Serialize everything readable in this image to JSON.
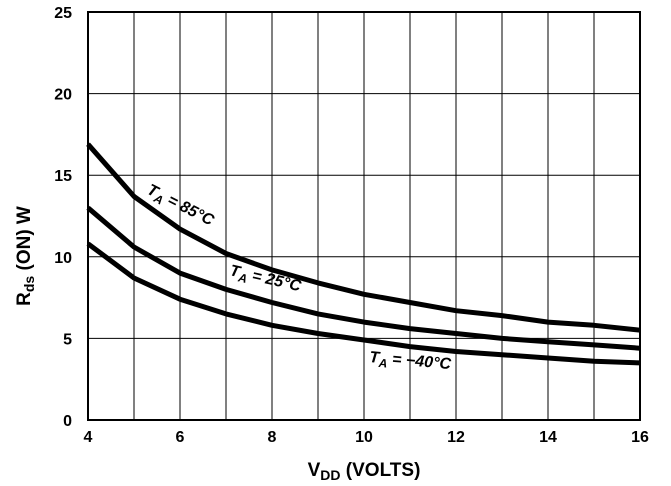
{
  "chart_data": {
    "type": "line",
    "xlabel": {
      "main": "V",
      "sub": "DD",
      "rest": " (VOLTS)"
    },
    "ylabel": {
      "main": "R",
      "sub": "ds",
      "rest": " (ON) W"
    },
    "xlim": [
      4,
      16
    ],
    "ylim": [
      0,
      25
    ],
    "x_ticks": [
      4,
      6,
      8,
      10,
      12,
      14,
      16
    ],
    "y_ticks": [
      0,
      5,
      10,
      15,
      20,
      25
    ],
    "grid": true,
    "x": [
      4,
      5,
      6,
      7,
      8,
      9,
      10,
      11,
      12,
      13,
      14,
      15,
      16
    ],
    "series": [
      {
        "values": [
          16.9,
          13.7,
          11.7,
          10.2,
          9.2,
          8.4,
          7.7,
          7.2,
          6.7,
          6.4,
          6.0,
          5.8,
          5.5
        ],
        "annotation": {
          "main": "T",
          "sub": "A",
          "rest": " = 85°C"
        }
      },
      {
        "values": [
          13.0,
          10.6,
          9.0,
          8.0,
          7.2,
          6.5,
          6.0,
          5.6,
          5.3,
          5.0,
          4.8,
          4.6,
          4.4
        ],
        "annotation": {
          "main": "T",
          "sub": "A",
          "rest": " = 25°C"
        }
      },
      {
        "values": [
          10.8,
          8.7,
          7.4,
          6.5,
          5.8,
          5.3,
          4.9,
          4.5,
          4.2,
          4.0,
          3.8,
          3.6,
          3.5
        ],
        "annotation": {
          "main": "T",
          "sub": "A",
          "rest": " = −40°C"
        }
      }
    ]
  }
}
